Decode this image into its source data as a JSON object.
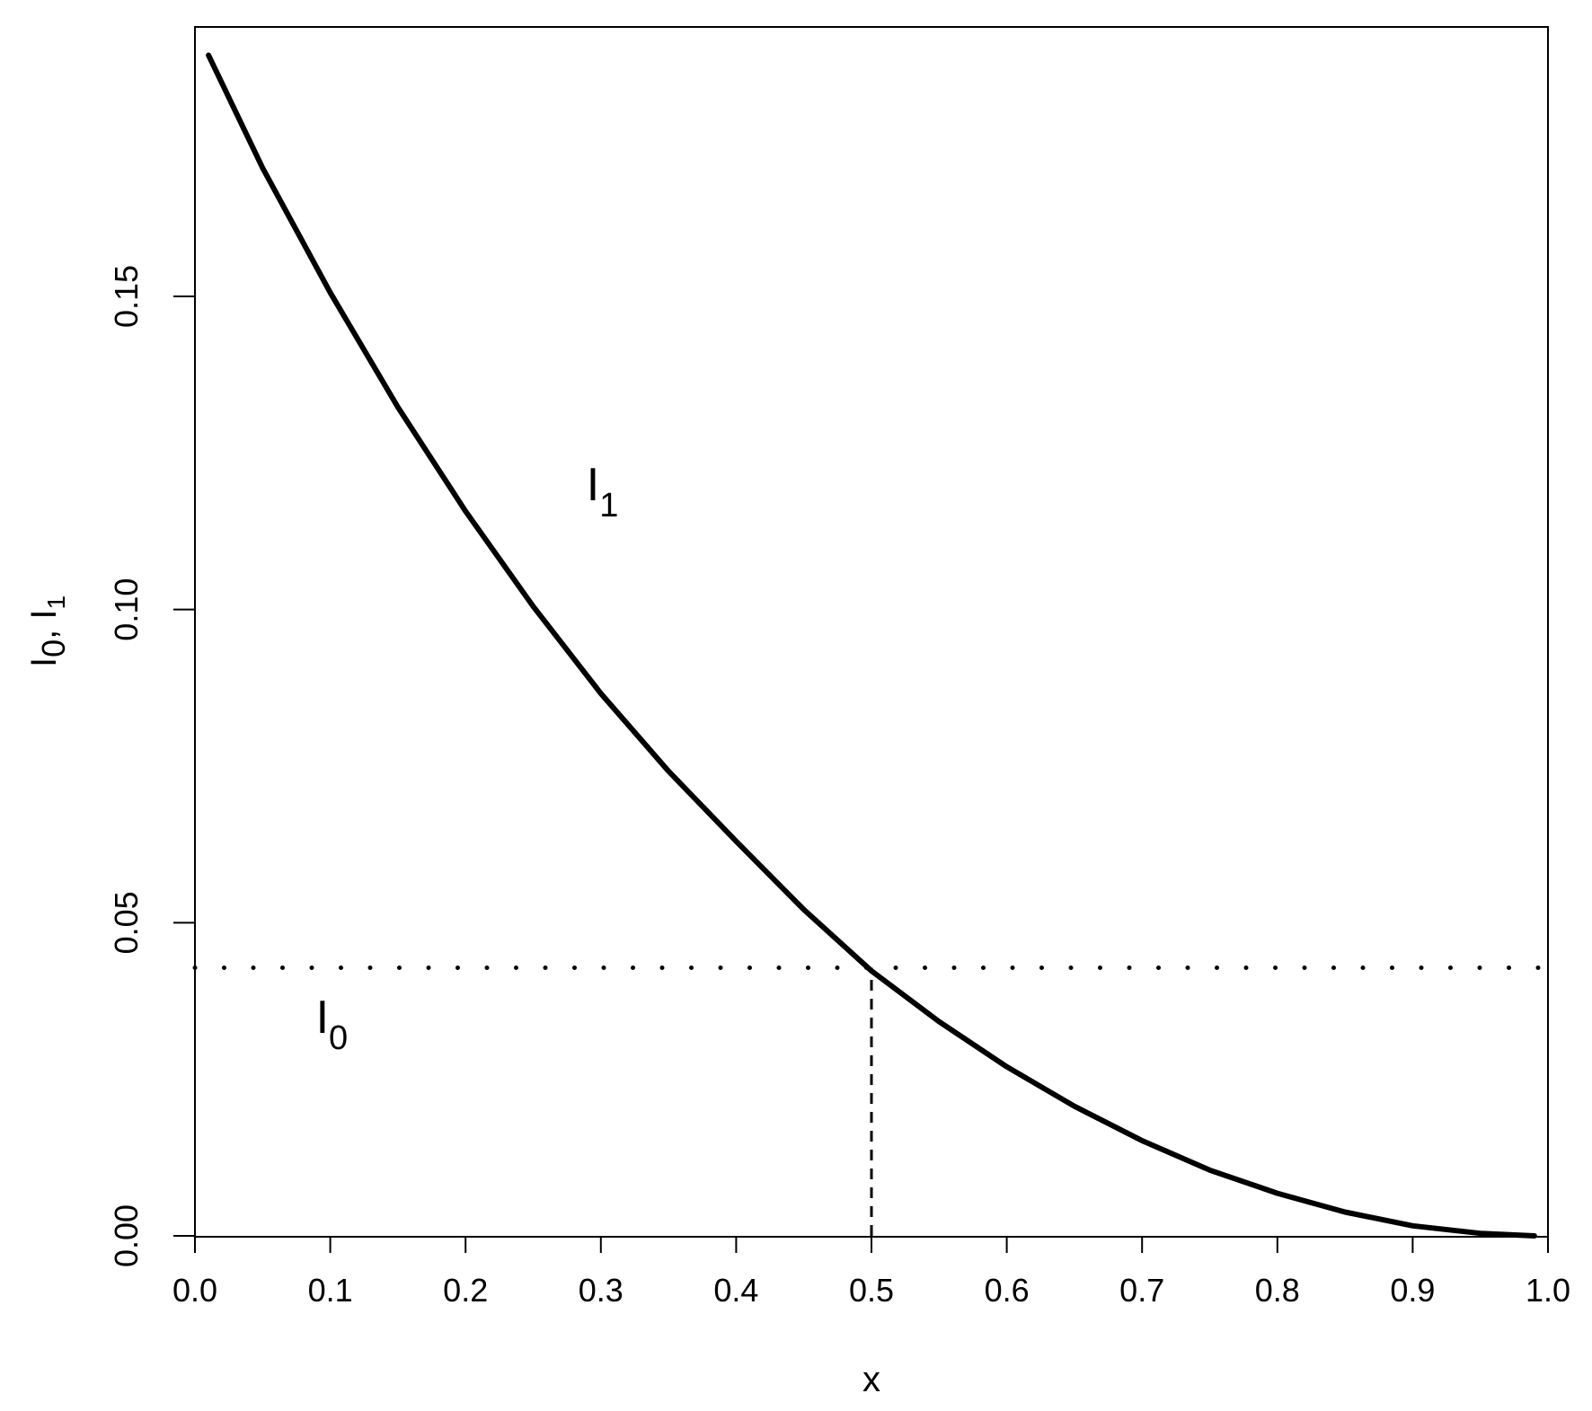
{
  "chart_data": {
    "type": "line",
    "title": "",
    "xlabel": "x",
    "ylabel": {
      "base1": "I",
      "sub1": "0",
      "sep": ", ",
      "base2": "I",
      "sub2": "1"
    },
    "xlim": [
      0,
      1
    ],
    "ylim": [
      0,
      0.19
    ],
    "xticks": [
      "0.0",
      "0.1",
      "0.2",
      "0.3",
      "0.4",
      "0.5",
      "0.6",
      "0.7",
      "0.8",
      "0.9",
      "1.0"
    ],
    "yticks": [
      "0.00",
      "0.05",
      "0.10",
      "0.15"
    ],
    "grid": false,
    "legend": "none",
    "series": [
      {
        "name": "I1",
        "style": "solid",
        "color": "#000000",
        "x": [
          0.01,
          0.05,
          0.1,
          0.15,
          0.2,
          0.25,
          0.3,
          0.35,
          0.4,
          0.45,
          0.5,
          0.55,
          0.6,
          0.65,
          0.7,
          0.75,
          0.8,
          0.85,
          0.9,
          0.95,
          0.99
        ],
        "y": [
          0.1885,
          0.1705,
          0.1506,
          0.1323,
          0.1157,
          0.1005,
          0.0866,
          0.0742,
          0.063,
          0.0521,
          0.0423,
          0.0342,
          0.027,
          0.0207,
          0.0152,
          0.0105,
          0.0068,
          0.0038,
          0.0016,
          0.0004,
          0.0
        ]
      },
      {
        "name": "I0",
        "style": "dotted",
        "color": "#000000",
        "x": [
          0.0,
          1.0
        ],
        "y": [
          0.0428,
          0.0428
        ]
      }
    ],
    "annotations": [
      {
        "kind": "label",
        "base": "I",
        "sub": "1",
        "x": 0.3,
        "y": 0.12
      },
      {
        "kind": "label",
        "base": "I",
        "sub": "0",
        "x": 0.1,
        "y": 0.035
      },
      {
        "kind": "vline",
        "style": "dashed",
        "x": 0.5,
        "y_from": 0,
        "y_to": 0.0428
      }
    ]
  }
}
